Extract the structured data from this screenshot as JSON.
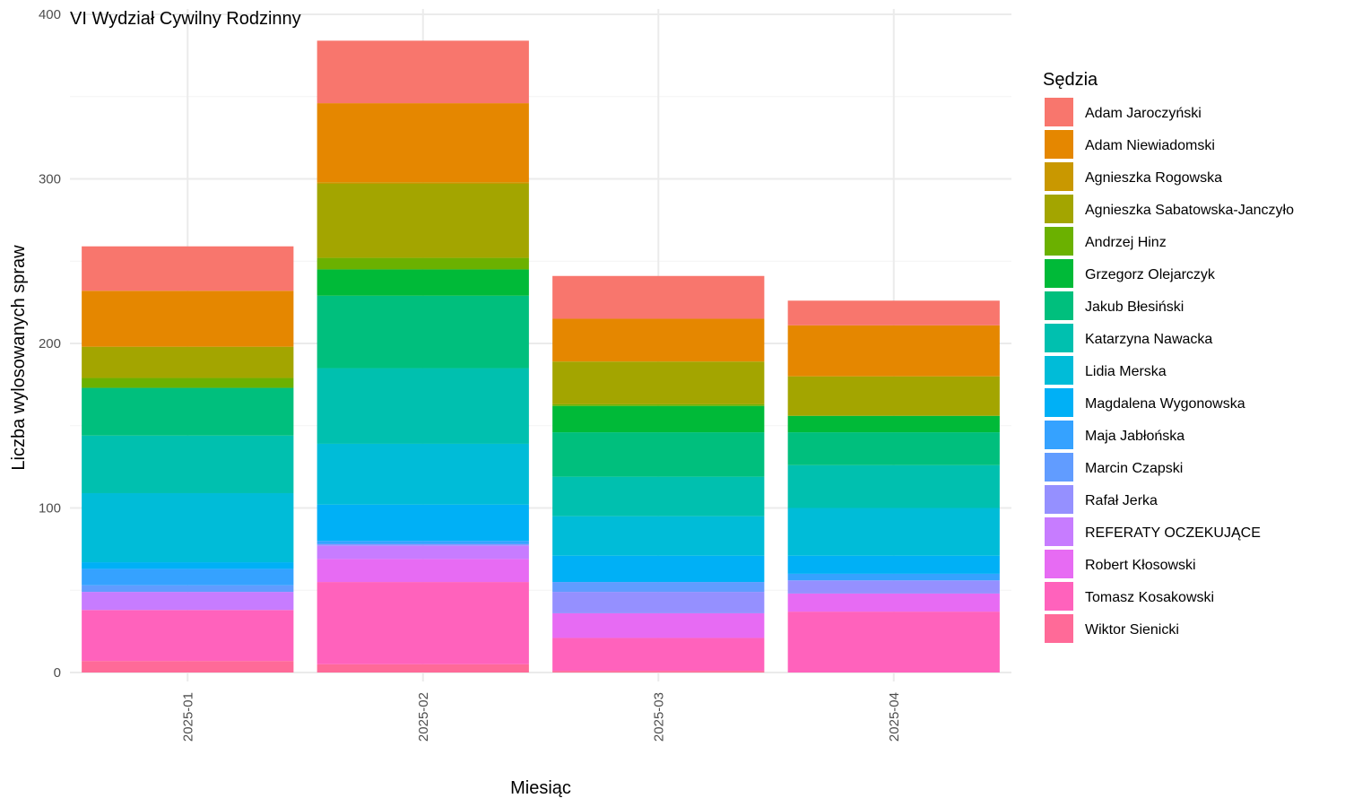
{
  "chart_data": {
    "type": "bar",
    "stacked": true,
    "title": "VI Wydział Cywilny Rodzinny",
    "xlabel": "Miesiąc",
    "ylabel": "Liczba wylosowanych spraw",
    "legend_title": "Sędzia",
    "legend_position": "right",
    "grid": true,
    "ylim": [
      0,
      400
    ],
    "yticks": [
      0,
      100,
      200,
      300,
      400
    ],
    "categories": [
      "2025-01",
      "2025-02",
      "2025-03",
      "2025-04"
    ],
    "series": [
      {
        "name": "Adam Jaroczyński",
        "color": "#F8766D",
        "values": [
          27,
          38,
          26,
          15
        ]
      },
      {
        "name": "Adam Niewiadomski",
        "color": "#E58700",
        "values": [
          34,
          48,
          26,
          31
        ]
      },
      {
        "name": "Agnieszka Rogowska",
        "color": "#C99800",
        "values": [
          0,
          1,
          0,
          0
        ]
      },
      {
        "name": "Agnieszka Sabatowska-Janczyło",
        "color": "#A3A500",
        "values": [
          19,
          45,
          26,
          24
        ]
      },
      {
        "name": "Andrzej Hinz",
        "color": "#6BB100",
        "values": [
          6,
          7,
          1,
          0
        ]
      },
      {
        "name": "Grzegorz Olejarczyk",
        "color": "#00BA38",
        "values": [
          0,
          16,
          16,
          10
        ]
      },
      {
        "name": "Jakub Błesiński",
        "color": "#00BF7D",
        "values": [
          29,
          44,
          27,
          20
        ]
      },
      {
        "name": "Katarzyna Nawacka",
        "color": "#00C0AF",
        "values": [
          35,
          46,
          24,
          26
        ]
      },
      {
        "name": "Lidia Merska",
        "color": "#00BCD8",
        "values": [
          42,
          37,
          24,
          29
        ]
      },
      {
        "name": "Magdalena Wygonowska",
        "color": "#00B0F6",
        "values": [
          4,
          22,
          16,
          11
        ]
      },
      {
        "name": "Maja Jabłońska",
        "color": "#35A2FF",
        "values": [
          10,
          2,
          0,
          4
        ]
      },
      {
        "name": "Marcin Czapski",
        "color": "#619CFF",
        "values": [
          4,
          0,
          6,
          0
        ]
      },
      {
        "name": "Rafał Jerka",
        "color": "#9590FF",
        "values": [
          0,
          1,
          13,
          8
        ]
      },
      {
        "name": "REFERATY OCZEKUJĄCE",
        "color": "#C77CFF",
        "values": [
          11,
          8,
          0,
          0
        ]
      },
      {
        "name": "Robert Kłosowski",
        "color": "#E76BF3",
        "values": [
          0,
          14,
          15,
          11
        ]
      },
      {
        "name": "Tomasz Kosakowski",
        "color": "#FF62BC",
        "values": [
          31,
          50,
          20,
          37
        ]
      },
      {
        "name": "Wiktor Sienicki",
        "color": "#FF6A98",
        "values": [
          7,
          5,
          1,
          0
        ]
      }
    ]
  }
}
